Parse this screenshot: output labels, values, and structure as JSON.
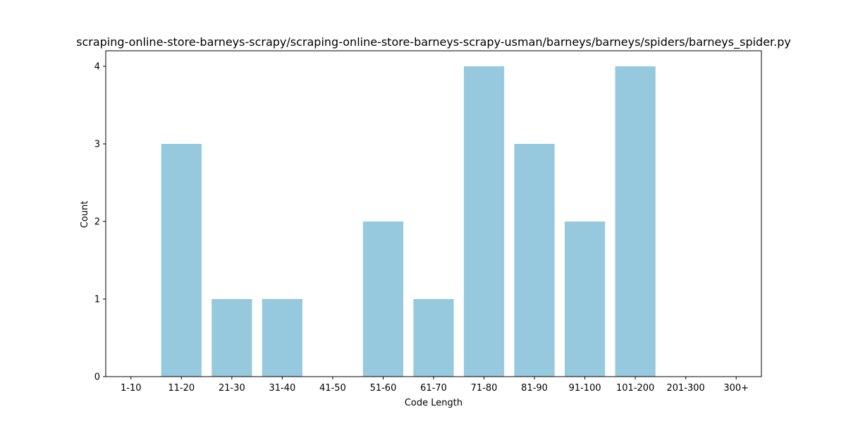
{
  "chart_data": {
    "type": "bar",
    "title": "scraping-online-store-barneys-scrapy/scraping-online-store-barneys-scrapy-usman/barneys/barneys/spiders/barneys_spider.py",
    "xlabel": "Code Length",
    "ylabel": "Count",
    "categories": [
      "1-10",
      "11-20",
      "21-30",
      "31-40",
      "41-50",
      "51-60",
      "61-70",
      "71-80",
      "81-90",
      "91-100",
      "101-200",
      "201-300",
      "300+"
    ],
    "values": [
      0,
      3,
      1,
      1,
      0,
      2,
      1,
      4,
      3,
      2,
      4,
      0,
      0
    ],
    "ylim": [
      0,
      4.2
    ],
    "yticks": [
      0,
      1,
      2,
      3,
      4
    ],
    "bar_color": "#96c9de",
    "grid": false,
    "legend": "none"
  }
}
